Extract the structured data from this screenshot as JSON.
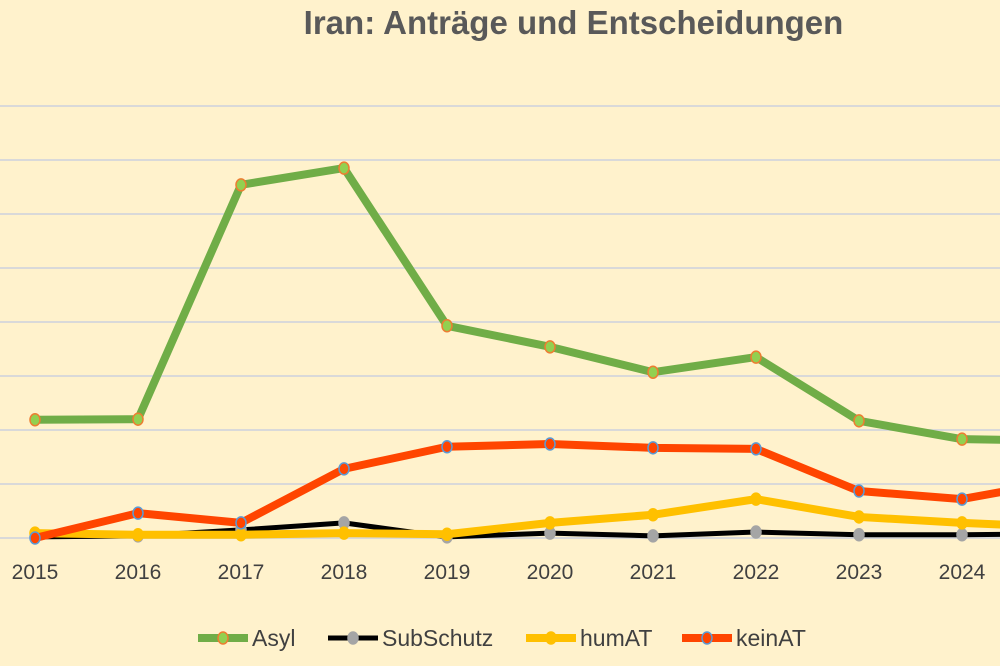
{
  "chart_data": {
    "type": "line",
    "title": "Iran: Anträge und Entscheidungen",
    "xlabel": "",
    "ylabel": "",
    "categories": [
      "2015",
      "2016",
      "2017",
      "2018",
      "2019",
      "2020",
      "2021",
      "2022",
      "2023",
      "2024"
    ],
    "ylim": [
      0,
      8
    ],
    "grid": true,
    "legend_position": "bottom",
    "series": [
      {
        "name": "Asyl",
        "color": "#70AD47",
        "marker_fill": "#92D050",
        "marker_edge": "#ED7D31",
        "values": [
          2.19,
          2.2,
          6.54,
          6.85,
          3.93,
          3.54,
          3.07,
          3.35,
          2.17,
          1.83
        ],
        "continues_to": 1.8
      },
      {
        "name": "SubSchutz",
        "color": "#000000",
        "marker_fill": "#A5A5A5",
        "marker_edge": "#A5A5A5",
        "values": [
          0.02,
          0.04,
          0.15,
          0.28,
          0.02,
          0.09,
          0.04,
          0.11,
          0.06,
          0.06
        ],
        "continues_to": 0.08
      },
      {
        "name": "humAT",
        "color": "#FFC000",
        "marker_fill": "#FFC000",
        "marker_edge": "#FFC000",
        "values": [
          0.09,
          0.06,
          0.06,
          0.09,
          0.07,
          0.28,
          0.43,
          0.72,
          0.39,
          0.28
        ],
        "continues_to": 0.2
      },
      {
        "name": "keinAT",
        "color": "#FF4500",
        "marker_fill": "#FF4500",
        "marker_edge": "#5B9BD5",
        "values": [
          0.0,
          0.46,
          0.28,
          1.28,
          1.69,
          1.74,
          1.67,
          1.65,
          0.87,
          0.72
        ],
        "continues_to": 1.07
      }
    ]
  }
}
